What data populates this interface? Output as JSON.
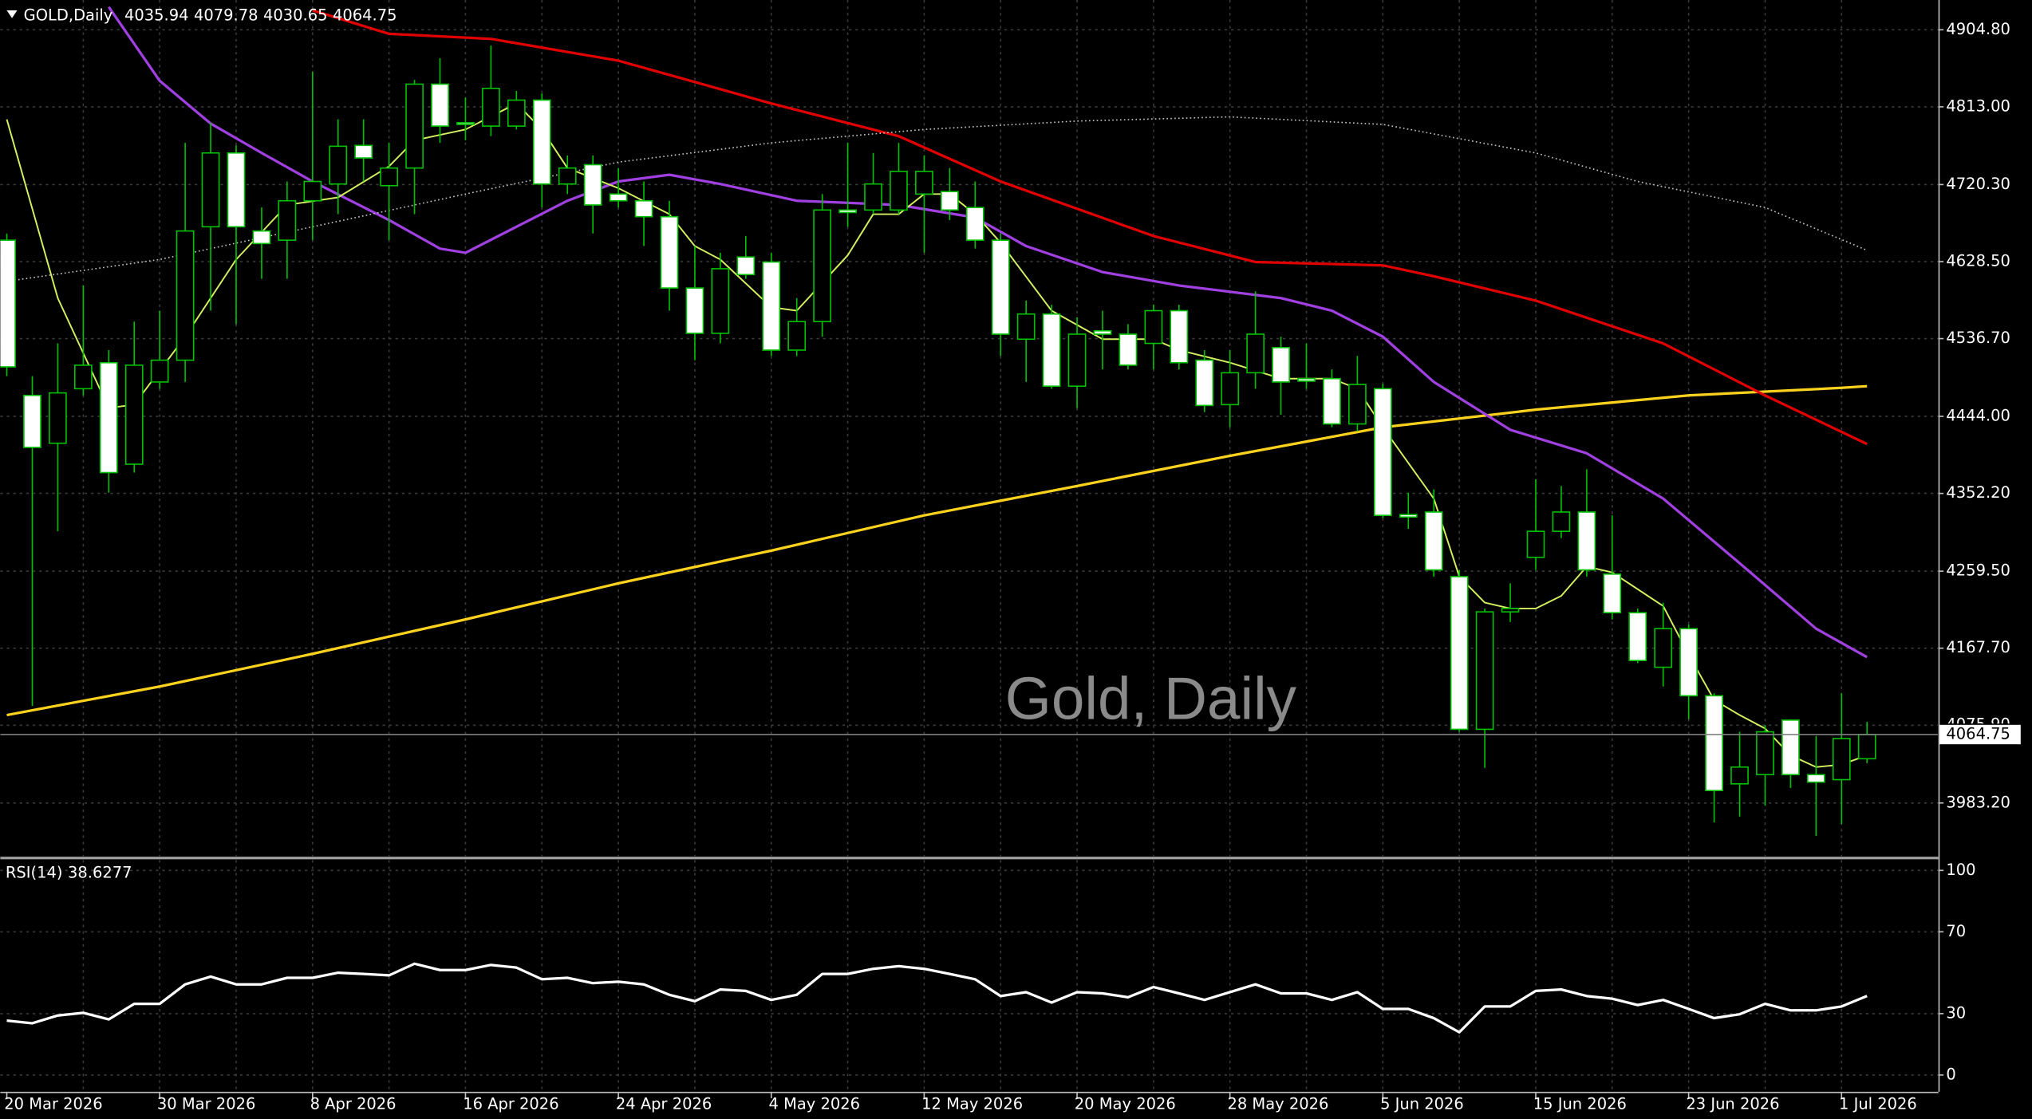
{
  "chart_data": [
    {
      "type": "candlestick",
      "title": "GOLD,Daily",
      "watermark": "Gold, Daily",
      "categories": [
        "20 Mar 2026",
        null,
        null,
        null,
        null,
        null,
        "30 Mar 2026",
        null,
        null,
        null,
        null,
        null,
        "8 Apr 2026",
        null,
        null,
        null,
        null,
        null,
        "16 Apr 2026",
        null,
        null,
        null,
        null,
        null,
        "24 Apr 2026",
        null,
        null,
        null,
        null,
        null,
        "4 May 2026",
        null,
        null,
        null,
        null,
        null,
        "12 May 2026",
        null,
        null,
        null,
        null,
        null,
        "20 May 2026",
        null,
        null,
        null,
        null,
        null,
        "28 May 2026",
        null,
        null,
        null,
        null,
        null,
        "5 Jun 2026",
        null,
        null,
        null,
        null,
        null,
        "15 Jun 2026",
        null,
        null,
        null,
        null,
        null,
        "23 Jun 2026",
        null,
        null,
        null,
        null,
        null,
        "1 Jul 2026",
        null
      ],
      "ohlc": [
        [
          4654,
          4662,
          4492,
          4503
        ],
        [
          4469,
          4492,
          4099,
          4407
        ],
        [
          4412,
          4531,
          4307,
          4472
        ],
        [
          4477,
          4600,
          4469,
          4505
        ],
        [
          4508,
          4523,
          4353,
          4377
        ],
        [
          4387,
          4557,
          4377,
          4505
        ],
        [
          4485,
          4570,
          4477,
          4511
        ],
        [
          4511,
          4770,
          4485,
          4665
        ],
        [
          4670,
          4794,
          4570,
          4758
        ],
        [
          4758,
          4767,
          4554,
          4670
        ],
        [
          4665,
          4693,
          4608,
          4650
        ],
        [
          4654,
          4724,
          4608,
          4701
        ],
        [
          4701,
          4855,
          4654,
          4724
        ],
        [
          4721,
          4798,
          4685,
          4766
        ],
        [
          4767,
          4798,
          4724,
          4752
        ],
        [
          4719,
          4770,
          4654,
          4740
        ],
        [
          4740,
          4845,
          4685,
          4840
        ],
        [
          4840,
          4871,
          4770,
          4790
        ],
        [
          4794,
          4824,
          4773,
          4792
        ],
        [
          4790,
          4886,
          4778,
          4835
        ],
        [
          4790,
          4832,
          4786,
          4821
        ],
        [
          4821,
          4829,
          4693,
          4721
        ],
        [
          4721,
          4755,
          4709,
          4740
        ],
        [
          4744,
          4755,
          4662,
          4696
        ],
        [
          4709,
          4740,
          4693,
          4701
        ],
        [
          4701,
          4724,
          4647,
          4682
        ],
        [
          4682,
          4701,
          4570,
          4597
        ],
        [
          4597,
          4647,
          4511,
          4543
        ],
        [
          4543,
          4639,
          4531,
          4620
        ],
        [
          4634,
          4659,
          4608,
          4613
        ],
        [
          4628,
          4639,
          4516,
          4523
        ],
        [
          4523,
          4585,
          4516,
          4557
        ],
        [
          4557,
          4709,
          4539,
          4690
        ],
        [
          4690,
          4770,
          4670,
          4687
        ],
        [
          4690,
          4758,
          4685,
          4721
        ],
        [
          4690,
          4770,
          4685,
          4736
        ],
        [
          4709,
          4755,
          4639,
          4736
        ],
        [
          4712,
          4740,
          4678,
          4690
        ],
        [
          4693,
          4724,
          4644,
          4654
        ],
        [
          4654,
          4662,
          4516,
          4542
        ],
        [
          4536,
          4582,
          4485,
          4566
        ],
        [
          4566,
          4577,
          4477,
          4480
        ],
        [
          4480,
          4562,
          4454,
          4542
        ],
        [
          4546,
          4570,
          4500,
          4542
        ],
        [
          4542,
          4554,
          4500,
          4505
        ],
        [
          4531,
          4577,
          4500,
          4570
        ],
        [
          4570,
          4577,
          4500,
          4508
        ],
        [
          4511,
          4523,
          4449,
          4457
        ],
        [
          4458,
          4523,
          4431,
          4496
        ],
        [
          4496,
          4593,
          4477,
          4542
        ],
        [
          4526,
          4539,
          4446,
          4485
        ],
        [
          4489,
          4531,
          4477,
          4486
        ],
        [
          4489,
          4500,
          4431,
          4435
        ],
        [
          4435,
          4516,
          4426,
          4482
        ],
        [
          4477,
          4483,
          4323,
          4326
        ],
        [
          4327,
          4353,
          4310,
          4324
        ],
        [
          4330,
          4357,
          4253,
          4261
        ],
        [
          4253,
          4261,
          4068,
          4071
        ],
        [
          4071,
          4215,
          4025,
          4211
        ],
        [
          4211,
          4245,
          4199,
          4215
        ],
        [
          4276,
          4369,
          4261,
          4307
        ],
        [
          4307,
          4361,
          4299,
          4330
        ],
        [
          4330,
          4381,
          4253,
          4261
        ],
        [
          4256,
          4326,
          4202,
          4210
        ],
        [
          4210,
          4215,
          4150,
          4153
        ],
        [
          4145,
          4222,
          4122,
          4191
        ],
        [
          4191,
          4196,
          4083,
          4111
        ],
        [
          4111,
          4114,
          3960,
          3998
        ],
        [
          4006,
          4068,
          3967,
          4026
        ],
        [
          4017,
          4076,
          3980,
          4068
        ],
        [
          4082,
          4083,
          4001,
          4017
        ],
        [
          4017,
          4063,
          3944,
          4008
        ],
        [
          4011,
          4114,
          3958,
          4060
        ],
        [
          4035.94,
          4079.78,
          4030.65,
          4064.75
        ]
      ],
      "bull_color": "#000000",
      "bear_color": "#ffffff",
      "wick_color": "#00c000",
      "series": [
        {
          "color": "#ffd21e",
          "style": "thick",
          "x": [
            0,
            6,
            12,
            18,
            24,
            30,
            36,
            42,
            48,
            54,
            60,
            66,
            72,
            73
          ],
          "values": [
            4088,
            4122,
            4161,
            4202,
            4245,
            4284,
            4326,
            4361,
            4397,
            4431,
            4452,
            4469,
            4478,
            4480
          ]
        },
        {
          "color": "#e00000",
          "style": "thick",
          "x": [
            12,
            15,
            19,
            24,
            30,
            35,
            39,
            45,
            49,
            54,
            56,
            60,
            65,
            69,
            73
          ],
          "values": [
            4928,
            4900,
            4894,
            4868,
            4817,
            4778,
            4724,
            4659,
            4628,
            4624,
            4611,
            4582,
            4531,
            4469,
            4411
          ]
        },
        {
          "color": "#a040e0",
          "style": "thick",
          "x": [
            4,
            6,
            8,
            10,
            12,
            15,
            17,
            18,
            20,
            22,
            24,
            26,
            28,
            31,
            35,
            38,
            40,
            43,
            46,
            50,
            52,
            54,
            56,
            59,
            62,
            65,
            68,
            71,
            73
          ],
          "values": [
            4932,
            4844,
            4793,
            4758,
            4724,
            4678,
            4644,
            4639,
            4670,
            4701,
            4724,
            4732,
            4721,
            4701,
            4696,
            4681,
            4647,
            4616,
            4600,
            4585,
            4570,
            4539,
            4485,
            4428,
            4400,
            4346,
            4269,
            4191,
            4157
          ]
        },
        {
          "color": "#d4f060",
          "style": "thin",
          "x": [
            0,
            2,
            4,
            5,
            7,
            9,
            11,
            13,
            15,
            16,
            18,
            20,
            21,
            22,
            24,
            26,
            27,
            28,
            30,
            31,
            32,
            33,
            34,
            35,
            36,
            37,
            38,
            39,
            41,
            43,
            45,
            46,
            48,
            50,
            52,
            53,
            54,
            56,
            57,
            58,
            59,
            60,
            61,
            62,
            63,
            64,
            65,
            66,
            67,
            68,
            69,
            70,
            71,
            72,
            73
          ],
          "values": [
            4798,
            4585,
            4454,
            4458,
            4539,
            4631,
            4696,
            4705,
            4742,
            4773,
            4786,
            4817,
            4786,
            4740,
            4716,
            4685,
            4647,
            4631,
            4574,
            4570,
            4603,
            4636,
            4685,
            4685,
            4709,
            4709,
            4685,
            4651,
            4570,
            4536,
            4536,
            4523,
            4508,
            4489,
            4489,
            4477,
            4431,
            4346,
            4253,
            4222,
            4215,
            4215,
            4230,
            4265,
            4258,
            4238,
            4218,
            4160,
            4106,
            4088,
            4072,
            4040,
            4026,
            4029,
            4040
          ]
        },
        {
          "color": "#c8c8c8",
          "style": "dotted",
          "x": [
            0,
            6,
            12,
            18,
            24,
            30,
            36,
            42,
            48,
            54,
            60,
            64,
            69,
            73
          ],
          "values": [
            4605,
            4631,
            4670,
            4709,
            4747,
            4770,
            4786,
            4796,
            4801,
            4792,
            4758,
            4724,
            4693,
            4642
          ]
        }
      ],
      "ylim": [
        3919.9,
        4940.3
      ],
      "yticks": [
        {
          "value": 3983.2,
          "label": "3983.20"
        },
        {
          "value": 4075.9,
          "label": "4075.90"
        },
        {
          "value": 4167.7,
          "label": "4167.70"
        },
        {
          "value": 4259.5,
          "label": "4259.50"
        },
        {
          "value": 4352.2,
          "label": "4352.20"
        },
        {
          "value": 4444,
          "label": "4444.00"
        },
        {
          "value": 4536.7,
          "label": "4536.70"
        },
        {
          "value": 4628.5,
          "label": "4628.50"
        },
        {
          "value": 4720.3,
          "label": "4720.30"
        },
        {
          "value": 4813,
          "label": "4813.00"
        },
        {
          "value": 4904.8,
          "label": "4904.80"
        }
      ],
      "grid": true
    },
    {
      "type": "line",
      "title": "RSI(14)",
      "color": "#ffffff",
      "values": [
        26.6,
        25.3,
        29.1,
        30.4,
        27.2,
        34.8,
        34.8,
        44.3,
        48.1,
        44.3,
        44.3,
        47.5,
        47.5,
        50.0,
        49.4,
        48.7,
        54.4,
        51.3,
        51.3,
        53.8,
        52.5,
        46.8,
        47.5,
        44.9,
        45.6,
        44.3,
        39.2,
        36.1,
        41.8,
        41.1,
        36.7,
        39.2,
        49.4,
        49.4,
        51.9,
        53.2,
        51.9,
        49.4,
        46.8,
        38.6,
        40.5,
        35.4,
        40.5,
        39.9,
        38.0,
        43.0,
        39.9,
        36.7,
        40.5,
        44.3,
        39.9,
        39.9,
        36.7,
        40.5,
        32.3,
        32.3,
        27.8,
        20.9,
        33.5,
        33.5,
        41.1,
        41.8,
        38.6,
        37.3,
        34.2,
        36.7,
        32.3,
        27.8,
        29.7,
        34.8,
        31.6,
        31.6,
        33.5,
        38.6277
      ],
      "ylim": [
        -8.2,
        105.1
      ],
      "yticks": [
        0,
        30,
        70,
        100
      ],
      "grid": true
    }
  ]
}
